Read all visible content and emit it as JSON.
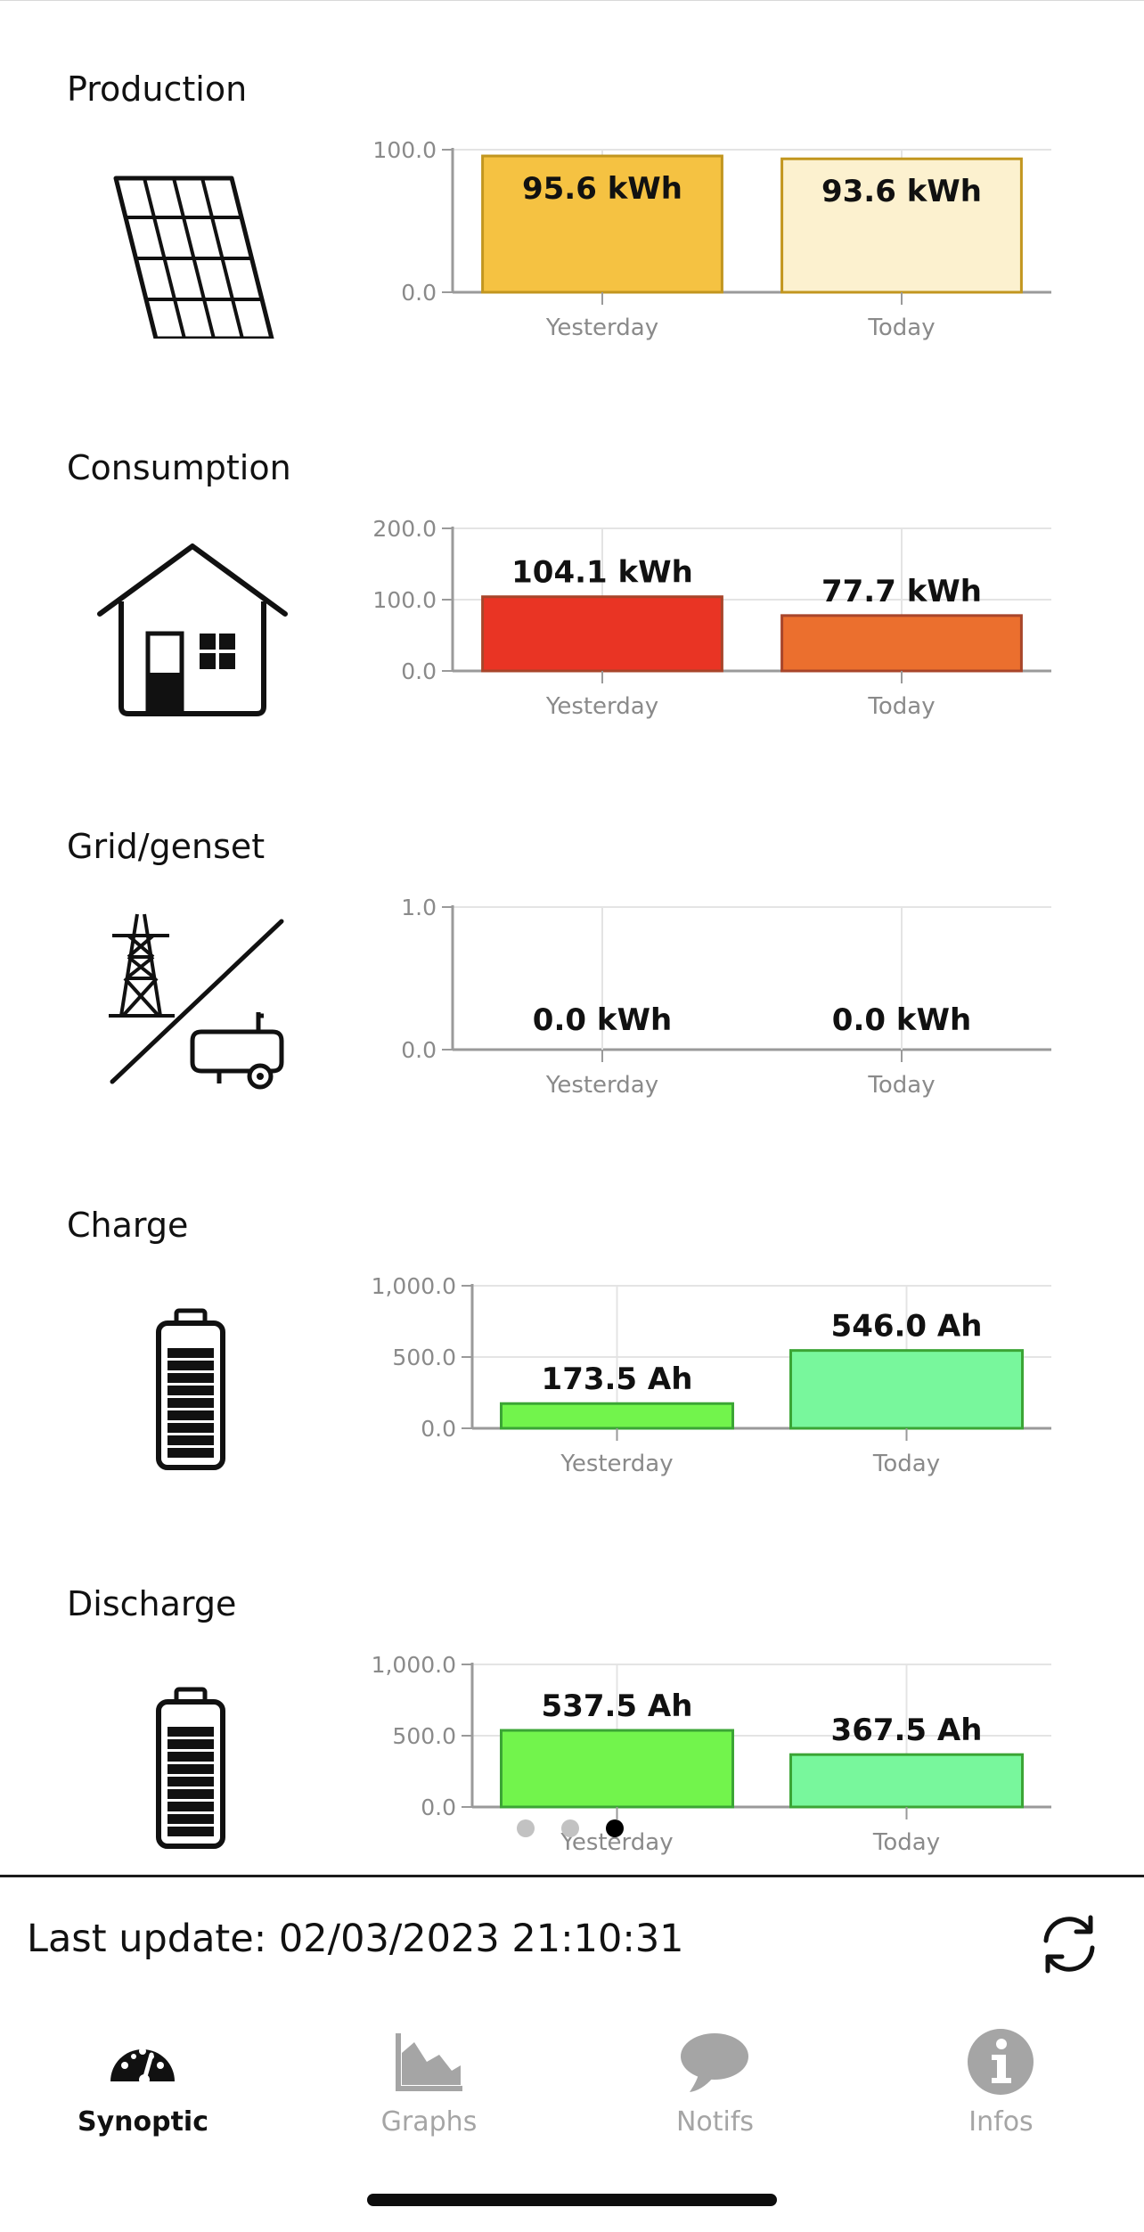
{
  "sections": [
    {
      "title": "Production",
      "icon": "solar-panel-icon",
      "chart": {
        "type": "bar",
        "categories": [
          "Yesterday",
          "Today"
        ],
        "values": [
          95.6,
          93.6
        ],
        "labels": [
          "95.6 kWh",
          "93.6 kWh"
        ],
        "ylim": [
          0,
          100
        ],
        "ticks": [
          "0.0",
          "100.0"
        ],
        "colors": [
          "#F5C242",
          "#FCF1CF"
        ],
        "stroke": "#C2961F"
      }
    },
    {
      "title": "Consumption",
      "icon": "house-icon",
      "chart": {
        "type": "bar",
        "categories": [
          "Yesterday",
          "Today"
        ],
        "values": [
          104.1,
          77.7
        ],
        "labels": [
          "104.1 kWh",
          "77.7 kWh"
        ],
        "ylim": [
          0,
          200
        ],
        "ticks": [
          "0.0",
          "100.0",
          "200.0"
        ],
        "colors": [
          "#E93424",
          "#EB6F2E"
        ],
        "stroke": "#A8452A"
      }
    },
    {
      "title": "Grid/genset",
      "icon": "grid-genset-icon",
      "chart": {
        "type": "bar",
        "categories": [
          "Yesterday",
          "Today"
        ],
        "values": [
          0.0,
          0.0
        ],
        "labels": [
          "0.0 kWh",
          "0.0 kWh"
        ],
        "ylim": [
          0,
          1
        ],
        "ticks": [
          "0.0",
          "1.0"
        ],
        "colors": [
          "#cccccc",
          "#cccccc"
        ],
        "stroke": "#999999"
      }
    },
    {
      "title": "Charge",
      "icon": "battery-charge-icon",
      "chart": {
        "type": "bar",
        "categories": [
          "Yesterday",
          "Today"
        ],
        "values": [
          173.5,
          546.0
        ],
        "labels": [
          "173.5 Ah",
          "546.0 Ah"
        ],
        "ylim": [
          0,
          1000
        ],
        "ticks": [
          "0.0",
          "500.0",
          "1,000.0"
        ],
        "colors": [
          "#72F44C",
          "#78F79C"
        ],
        "stroke": "#3BA535"
      }
    },
    {
      "title": "Discharge",
      "icon": "battery-discharge-icon",
      "chart": {
        "type": "bar",
        "categories": [
          "Yesterday",
          "Today"
        ],
        "values": [
          537.5,
          367.5
        ],
        "labels": [
          "537.5 Ah",
          "367.5 Ah"
        ],
        "ylim": [
          0,
          1000
        ],
        "ticks": [
          "0.0",
          "500.0",
          "1,000.0"
        ],
        "colors": [
          "#72F44C",
          "#78F79C"
        ],
        "stroke": "#3BA535"
      }
    }
  ],
  "chart_data": [
    {
      "type": "bar",
      "title": "Production",
      "categories": [
        "Yesterday",
        "Today"
      ],
      "values": [
        95.6,
        93.6
      ],
      "unit": "kWh",
      "ylim": [
        0,
        100
      ]
    },
    {
      "type": "bar",
      "title": "Consumption",
      "categories": [
        "Yesterday",
        "Today"
      ],
      "values": [
        104.1,
        77.7
      ],
      "unit": "kWh",
      "ylim": [
        0,
        200
      ]
    },
    {
      "type": "bar",
      "title": "Grid/genset",
      "categories": [
        "Yesterday",
        "Today"
      ],
      "values": [
        0.0,
        0.0
      ],
      "unit": "kWh",
      "ylim": [
        0,
        1
      ]
    },
    {
      "type": "bar",
      "title": "Charge",
      "categories": [
        "Yesterday",
        "Today"
      ],
      "values": [
        173.5,
        546.0
      ],
      "unit": "Ah",
      "ylim": [
        0,
        1000
      ]
    },
    {
      "type": "bar",
      "title": "Discharge",
      "categories": [
        "Yesterday",
        "Today"
      ],
      "values": [
        537.5,
        367.5
      ],
      "unit": "Ah",
      "ylim": [
        0,
        1000
      ]
    }
  ],
  "pager": {
    "count": 3,
    "active_index": 2
  },
  "footer": {
    "last_update": "Last update: 02/03/2023 21:10:31",
    "refresh_icon": "refresh-icon"
  },
  "tabs": [
    {
      "label": "Synoptic",
      "icon": "speedometer-icon",
      "active": true
    },
    {
      "label": "Graphs",
      "icon": "area-chart-icon",
      "active": false
    },
    {
      "label": "Notifs",
      "icon": "chat-bubble-icon",
      "active": false
    },
    {
      "label": "Infos",
      "icon": "info-icon",
      "active": false
    }
  ]
}
